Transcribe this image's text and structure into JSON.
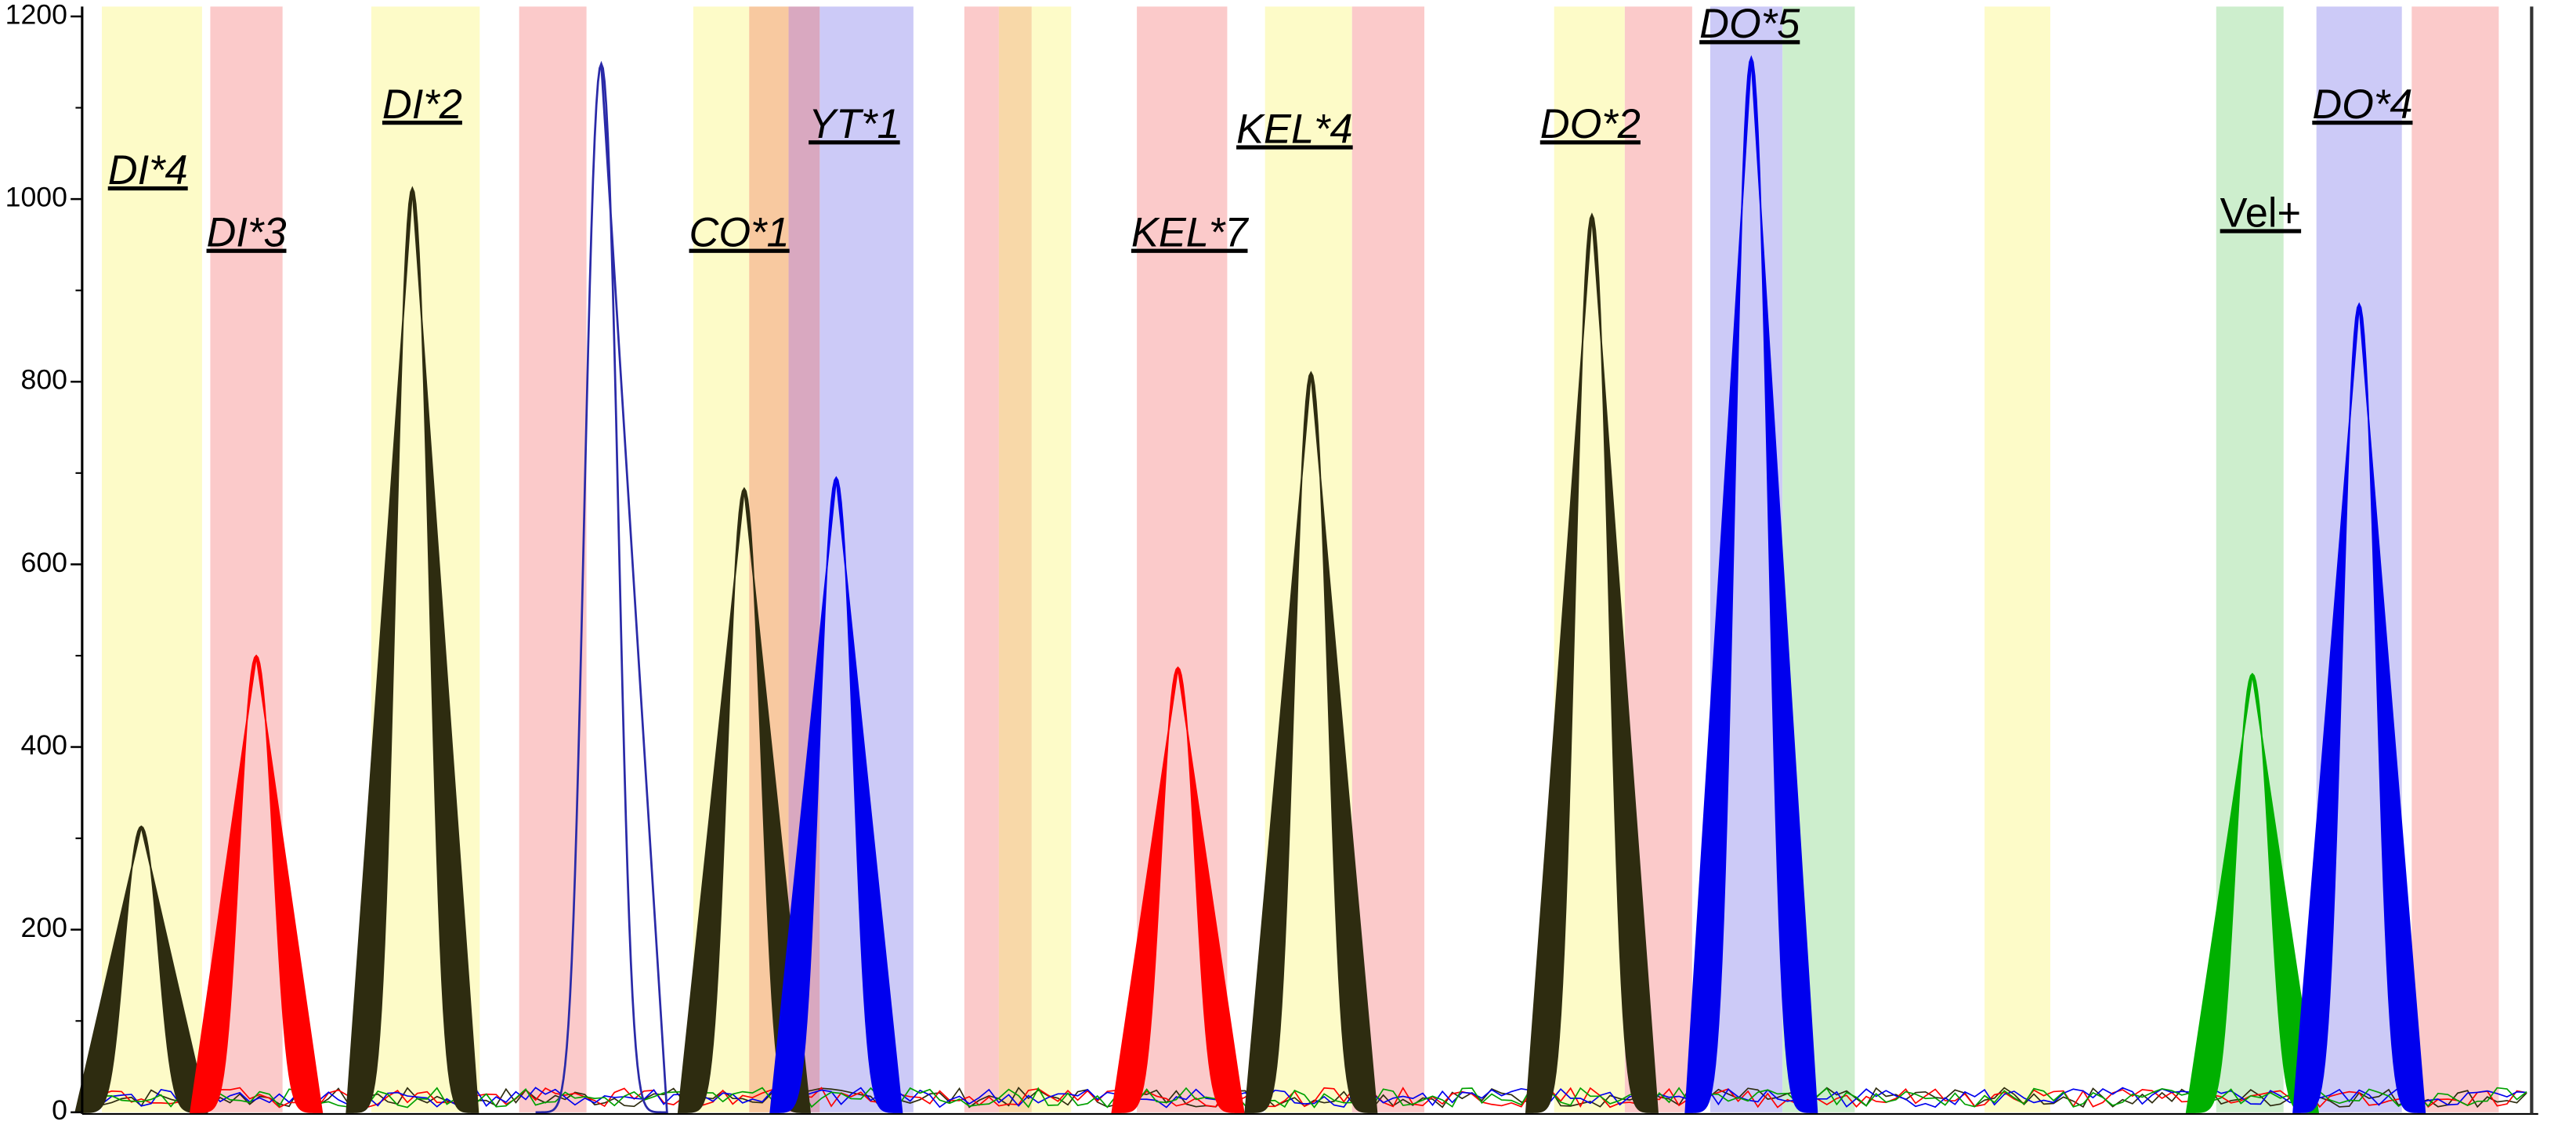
{
  "chart_data": {
    "type": "electropherogram",
    "ylim": [
      0,
      1200
    ],
    "yticks": [
      0,
      200,
      400,
      600,
      800,
      1000,
      1200
    ],
    "peaks": [
      {
        "label": "DI*4",
        "color": "#2e2c10",
        "value": 313,
        "filled": true
      },
      {
        "label": "DI*3",
        "color": "#ff0000",
        "value": 500,
        "filled": true
      },
      {
        "label": "DI*2",
        "color": "#2e2c10",
        "value": 1012,
        "filled": true
      },
      {
        "label": null,
        "color": "#2a2aa8",
        "value": 1148,
        "filled": false
      },
      {
        "label": "CO*1",
        "color": "#2e2c10",
        "value": 683,
        "filled": true
      },
      {
        "label": "YT*1",
        "color": "#0000ee",
        "value": 695,
        "filled": true
      },
      {
        "label": "KEL*7",
        "color": "#ff0000",
        "value": 487,
        "filled": true
      },
      {
        "label": "KEL*4",
        "color": "#2e2c10",
        "value": 810,
        "filled": true
      },
      {
        "label": "DO*2",
        "color": "#2e2c10",
        "value": 983,
        "filled": true
      },
      {
        "label": "DO*5",
        "color": "#0000ee",
        "value": 1155,
        "filled": true
      },
      {
        "label": "Vel+",
        "color": "#00b000",
        "value": 480,
        "filled": true
      },
      {
        "label": "DO*4",
        "color": "#0000ee",
        "value": 885,
        "filled": true
      }
    ]
  }
}
